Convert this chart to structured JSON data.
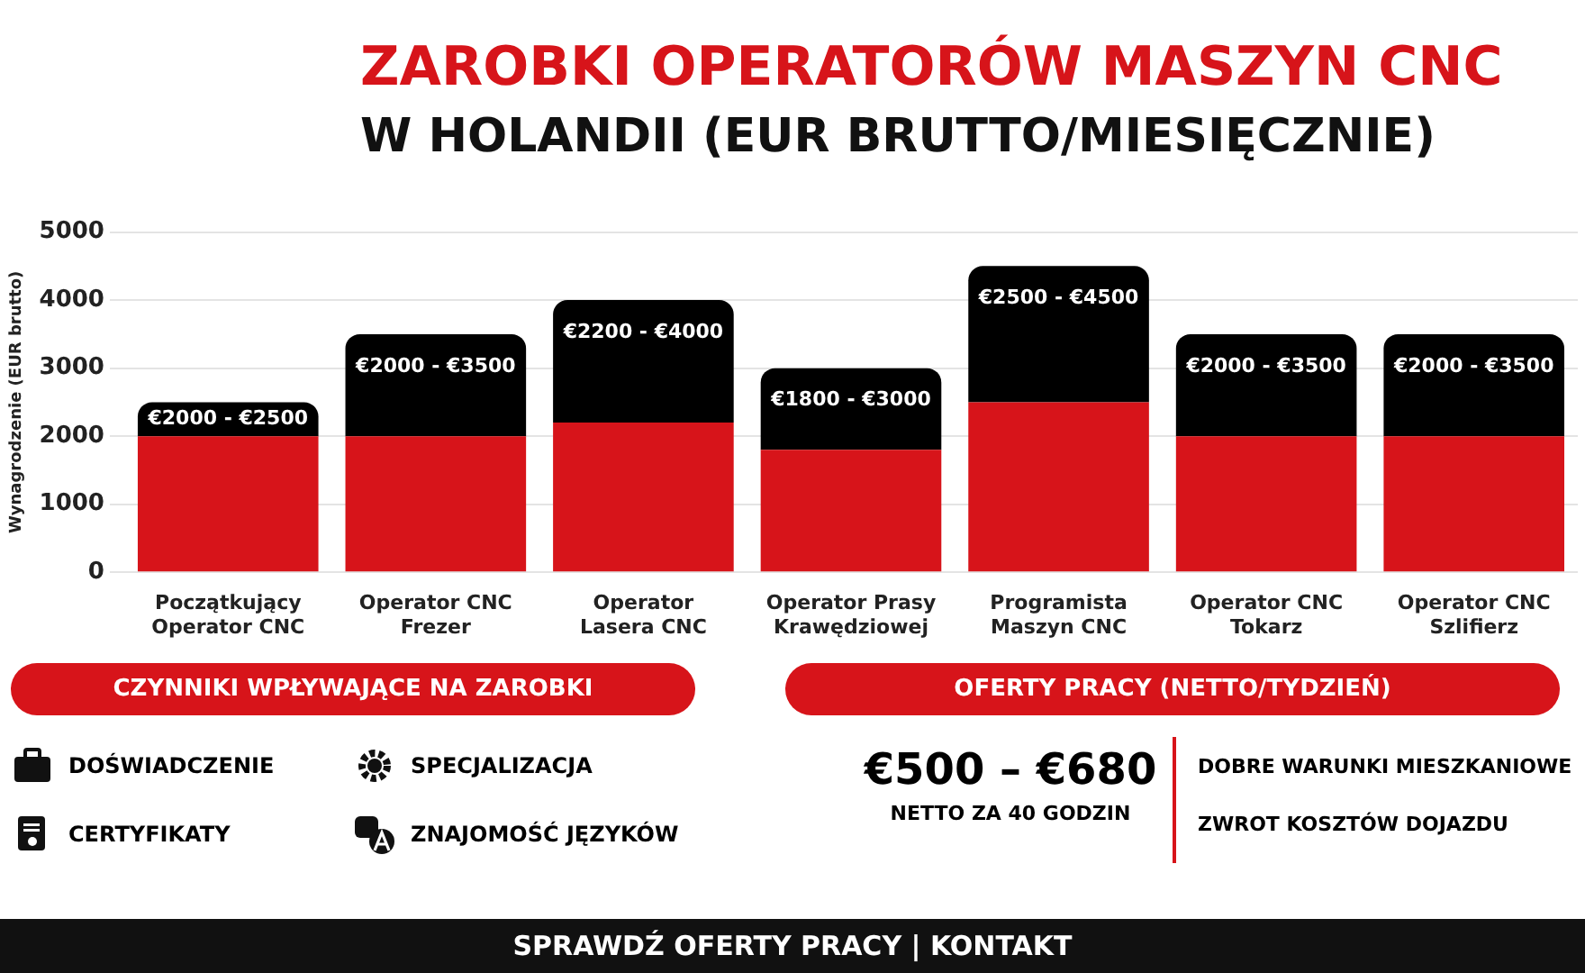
{
  "chart_data": {
    "type": "bar",
    "title": "ZAROBKI OPERATORÓW MASZYN CNC",
    "subtitle": "W HOLANDII (EUR BRUTTO/MIESIĘCZNIE)",
    "ylabel": "Wynagrodzenie (EUR brutto)",
    "categories": [
      "Początkujący Operator CNC",
      "Operator CNC Frezer",
      "Operator Lasera CNC",
      "Operator Prasy Krawędziowej",
      "Programista Maszyn CNC",
      "Operator CNC Tokarz",
      "Operator CNC Szlifierz"
    ],
    "stacked": true,
    "series": [
      {
        "color": "#d7141a",
        "values": [
          2000,
          2000,
          2200,
          1800,
          2500,
          2000,
          2000
        ]
      },
      {
        "color": "#000000",
        "values": [
          500,
          1500,
          1800,
          1200,
          2000,
          1500,
          1500
        ]
      }
    ],
    "ylim": [
      0,
      5000
    ],
    "yticks": [
      0,
      1000,
      2000,
      3000,
      4000,
      5000
    ],
    "grid": "y",
    "annotations": [
      {
        "text": "€2000 - €2500",
        "x": "Początkujący Operator CNC",
        "y": 2500
      },
      {
        "text": "€2000 - €3500",
        "x": "Operator CNC Frezer",
        "y": 3500
      },
      {
        "text": "€2200 - €4000",
        "x": "Operator Lasera CNC",
        "y": 4000
      },
      {
        "text": "€1800 - €3000",
        "x": "Operator Prasy Krawędziowej",
        "y": 3000
      },
      {
        "text": "€2500 - €4500",
        "x": "Programista Maszyn CNC",
        "y": 4500
      },
      {
        "text": "€2000 - €3500",
        "x": "Operator CNC Tokarz",
        "y": 3500
      },
      {
        "text": "€2000 - €3500",
        "x": "Operator CNC Szlifierz",
        "y": 3500
      },
      "CZYNNIKI WPŁYWAJĄCE NA ZAROBKI",
      "DOŚWIADCZENIE",
      "CERTYFIKATY",
      "SPECJALIZACJA",
      "ZNAJOMOŚĆ JĘZYKÓW",
      "OFERTY PRACY (NETTO/TYDZIEŃ)",
      "€500 – €680",
      "NETTO ZA 40 GODZIN",
      "DOBRE WARUNKI MIESZKANIOWE",
      "ZWROT KOSZTÓW DOJAZDU",
      "SPRAWDŹ OFERTY PRACY | KONTAKT"
    ]
  }
}
